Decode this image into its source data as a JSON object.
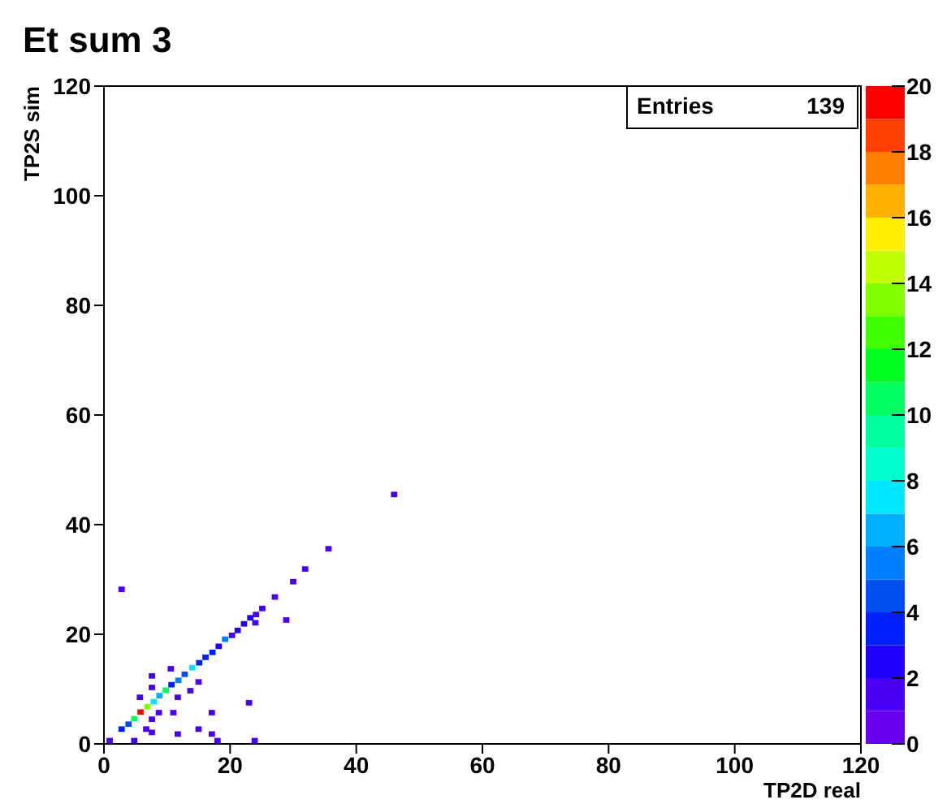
{
  "chart_data": {
    "type": "scatter",
    "title": "Et sum 3",
    "xlabel": "TP2D real",
    "ylabel": "TP2S sim",
    "annotations": [
      "Entries",
      "139"
    ],
    "x": [
      0.9,
      2.8,
      3.9,
      4.8,
      5.8,
      6.9,
      7.9,
      8.8,
      9.8,
      10.7,
      11.8,
      12.8,
      14.0,
      15.1,
      16.1,
      17.2,
      18.2,
      19.2,
      20.3,
      21.2,
      22.2,
      23.2,
      24.1,
      25.1,
      27.1,
      30.0,
      31.9,
      35.6,
      46.0,
      2.8,
      28.9,
      23.0,
      24.0,
      7.6,
      7.6,
      10.6,
      5.7,
      11.7,
      15.0,
      13.7,
      8.7,
      11.0,
      17.1,
      7.6,
      6.7,
      7.6,
      11.7,
      15.0,
      17.1,
      18.0,
      23.9,
      4.8
    ],
    "values": [
      0.6,
      2.7,
      3.6,
      4.6,
      5.8,
      6.8,
      7.7,
      8.8,
      9.8,
      10.8,
      11.6,
      12.7,
      13.9,
      14.8,
      15.8,
      16.7,
      17.8,
      19.1,
      19.8,
      20.7,
      21.9,
      23.0,
      23.6,
      24.7,
      26.8,
      29.6,
      31.9,
      35.6,
      45.5,
      28.2,
      22.6,
      7.5,
      22.1,
      12.4,
      10.3,
      13.7,
      8.5,
      8.5,
      11.3,
      9.7,
      5.7,
      5.7,
      5.7,
      4.5,
      2.7,
      2.1,
      1.8,
      2.7,
      1.8,
      0.6,
      0.6,
      0.6
    ],
    "cvalues": [
      1,
      3,
      4,
      10,
      19,
      13,
      7,
      6,
      10,
      3,
      5,
      4,
      7,
      3,
      3,
      3,
      2,
      5,
      1,
      2,
      2,
      2,
      1,
      1,
      1,
      1,
      1,
      1,
      1,
      1,
      1,
      1,
      1,
      1,
      1,
      1,
      1,
      1,
      1,
      1,
      1,
      1,
      1,
      1,
      1,
      1,
      1,
      1,
      1,
      1,
      1,
      1
    ],
    "xlim": [
      0,
      120
    ],
    "ylim": [
      0,
      120
    ],
    "xticks": [
      0,
      20,
      40,
      60,
      80,
      100,
      120
    ],
    "yticks": [
      0,
      20,
      40,
      60,
      80,
      100,
      120
    ],
    "clim": [
      0,
      20
    ],
    "cticks": [
      0,
      2,
      4,
      6,
      8,
      10,
      12,
      14,
      16,
      18,
      20
    ],
    "grid": false
  }
}
